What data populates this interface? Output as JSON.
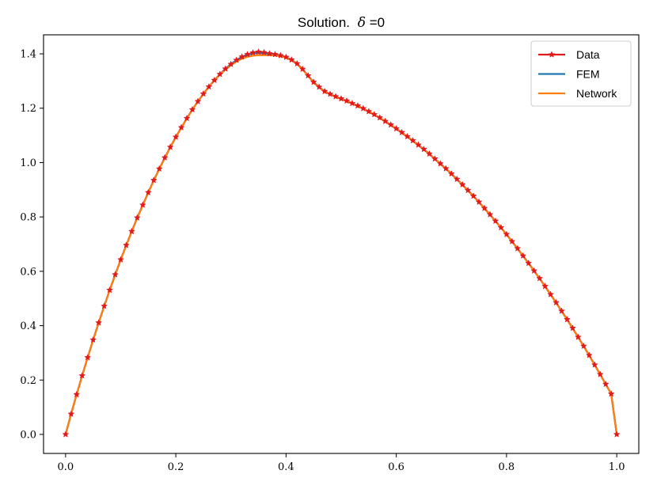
{
  "chart_data": {
    "type": "line",
    "title_prefix": "Solution.",
    "title_symbol": "δ",
    "title_suffix": "=0",
    "xlabel": "",
    "ylabel": "",
    "xlim": [
      -0.04,
      1.04
    ],
    "ylim": [
      -0.07,
      1.47
    ],
    "x_ticks": [
      0.0,
      0.2,
      0.4,
      0.6,
      0.8,
      1.0
    ],
    "x_tick_labels": [
      "0.0",
      "0.2",
      "0.4",
      "0.6",
      "0.8",
      "1.0"
    ],
    "y_ticks": [
      0.0,
      0.2,
      0.4,
      0.6,
      0.8,
      1.0,
      1.2,
      1.4
    ],
    "y_tick_labels": [
      "0.0",
      "0.2",
      "0.4",
      "0.6",
      "0.8",
      "1.0",
      "1.2",
      "1.4"
    ],
    "grid": false,
    "legend_position": "top-right",
    "x": [
      0.0,
      0.01,
      0.02,
      0.03,
      0.04,
      0.05,
      0.06,
      0.07,
      0.08,
      0.09,
      0.1,
      0.11,
      0.12,
      0.13,
      0.14,
      0.15,
      0.16,
      0.17,
      0.18,
      0.19,
      0.2,
      0.21,
      0.22,
      0.23,
      0.24,
      0.25,
      0.26,
      0.27,
      0.28,
      0.29,
      0.3,
      0.31,
      0.32,
      0.33,
      0.34,
      0.35,
      0.36,
      0.37,
      0.38,
      0.39,
      0.4,
      0.41,
      0.42,
      0.43,
      0.44,
      0.45,
      0.46,
      0.47,
      0.48,
      0.49,
      0.5,
      0.51,
      0.52,
      0.53,
      0.54,
      0.55,
      0.56,
      0.57,
      0.58,
      0.59,
      0.6,
      0.61,
      0.62,
      0.63,
      0.64,
      0.65,
      0.66,
      0.67,
      0.68,
      0.69,
      0.7,
      0.71,
      0.72,
      0.73,
      0.74,
      0.75,
      0.76,
      0.77,
      0.78,
      0.79,
      0.8,
      0.81,
      0.82,
      0.83,
      0.84,
      0.85,
      0.86,
      0.87,
      0.88,
      0.89,
      0.9,
      0.91,
      0.92,
      0.93,
      0.94,
      0.95,
      0.96,
      0.97,
      0.98,
      0.99,
      1.0
    ],
    "series": [
      {
        "name": "Data",
        "color": "#e31a1c",
        "marker": "star",
        "values": [
          0.0,
          0.075,
          0.147,
          0.216,
          0.283,
          0.348,
          0.411,
          0.472,
          0.531,
          0.588,
          0.643,
          0.696,
          0.747,
          0.797,
          0.844,
          0.89,
          0.935,
          0.977,
          1.018,
          1.057,
          1.094,
          1.129,
          1.163,
          1.195,
          1.225,
          1.253,
          1.279,
          1.303,
          1.325,
          1.345,
          1.362,
          1.377,
          1.389,
          1.398,
          1.404,
          1.407,
          1.405,
          1.401,
          1.398,
          1.394,
          1.388,
          1.378,
          1.364,
          1.344,
          1.32,
          1.296,
          1.278,
          1.262,
          1.252,
          1.243,
          1.235,
          1.227,
          1.218,
          1.209,
          1.199,
          1.188,
          1.177,
          1.165,
          1.152,
          1.139,
          1.125,
          1.111,
          1.096,
          1.081,
          1.065,
          1.049,
          1.032,
          1.014,
          0.996,
          0.978,
          0.959,
          0.939,
          0.919,
          0.898,
          0.877,
          0.855,
          0.832,
          0.809,
          0.785,
          0.761,
          0.736,
          0.71,
          0.684,
          0.657,
          0.63,
          0.602,
          0.574,
          0.545,
          0.515,
          0.485,
          0.454,
          0.423,
          0.391,
          0.358,
          0.325,
          0.291,
          0.256,
          0.221,
          0.185,
          0.149,
          0.0
        ]
      },
      {
        "name": "FEM",
        "color": "#1f77b4",
        "marker": "none",
        "values": [
          0.0,
          0.074,
          0.146,
          0.215,
          0.282,
          0.347,
          0.41,
          0.471,
          0.53,
          0.587,
          0.642,
          0.695,
          0.746,
          0.796,
          0.843,
          0.889,
          0.934,
          0.976,
          1.017,
          1.056,
          1.093,
          1.128,
          1.162,
          1.194,
          1.224,
          1.252,
          1.278,
          1.302,
          1.324,
          1.344,
          1.361,
          1.376,
          1.388,
          1.396,
          1.401,
          1.403,
          1.402,
          1.399,
          1.397,
          1.393,
          1.387,
          1.377,
          1.363,
          1.343,
          1.319,
          1.295,
          1.277,
          1.261,
          1.251,
          1.242,
          1.234,
          1.226,
          1.217,
          1.208,
          1.198,
          1.187,
          1.176,
          1.164,
          1.151,
          1.138,
          1.124,
          1.11,
          1.095,
          1.08,
          1.064,
          1.048,
          1.031,
          1.013,
          0.995,
          0.977,
          0.958,
          0.938,
          0.918,
          0.897,
          0.876,
          0.854,
          0.831,
          0.808,
          0.784,
          0.76,
          0.735,
          0.709,
          0.683,
          0.656,
          0.629,
          0.601,
          0.573,
          0.544,
          0.514,
          0.484,
          0.453,
          0.422,
          0.39,
          0.357,
          0.324,
          0.29,
          0.255,
          0.22,
          0.184,
          0.148,
          0.0
        ]
      },
      {
        "name": "Network",
        "color": "#ff7f0e",
        "marker": "none",
        "values": [
          0.0,
          0.074,
          0.146,
          0.215,
          0.282,
          0.347,
          0.41,
          0.471,
          0.53,
          0.587,
          0.642,
          0.695,
          0.746,
          0.796,
          0.843,
          0.889,
          0.934,
          0.976,
          1.017,
          1.056,
          1.093,
          1.128,
          1.162,
          1.194,
          1.224,
          1.252,
          1.278,
          1.302,
          1.323,
          1.342,
          1.358,
          1.372,
          1.382,
          1.389,
          1.393,
          1.395,
          1.395,
          1.395,
          1.394,
          1.391,
          1.386,
          1.376,
          1.362,
          1.342,
          1.318,
          1.294,
          1.276,
          1.261,
          1.251,
          1.242,
          1.234,
          1.226,
          1.217,
          1.208,
          1.198,
          1.187,
          1.176,
          1.164,
          1.151,
          1.138,
          1.124,
          1.11,
          1.095,
          1.08,
          1.064,
          1.048,
          1.031,
          1.013,
          0.995,
          0.977,
          0.958,
          0.938,
          0.918,
          0.897,
          0.876,
          0.854,
          0.831,
          0.808,
          0.784,
          0.76,
          0.735,
          0.709,
          0.683,
          0.656,
          0.629,
          0.601,
          0.573,
          0.544,
          0.514,
          0.484,
          0.453,
          0.422,
          0.39,
          0.357,
          0.324,
          0.29,
          0.255,
          0.22,
          0.184,
          0.148,
          0.0
        ]
      }
    ]
  }
}
